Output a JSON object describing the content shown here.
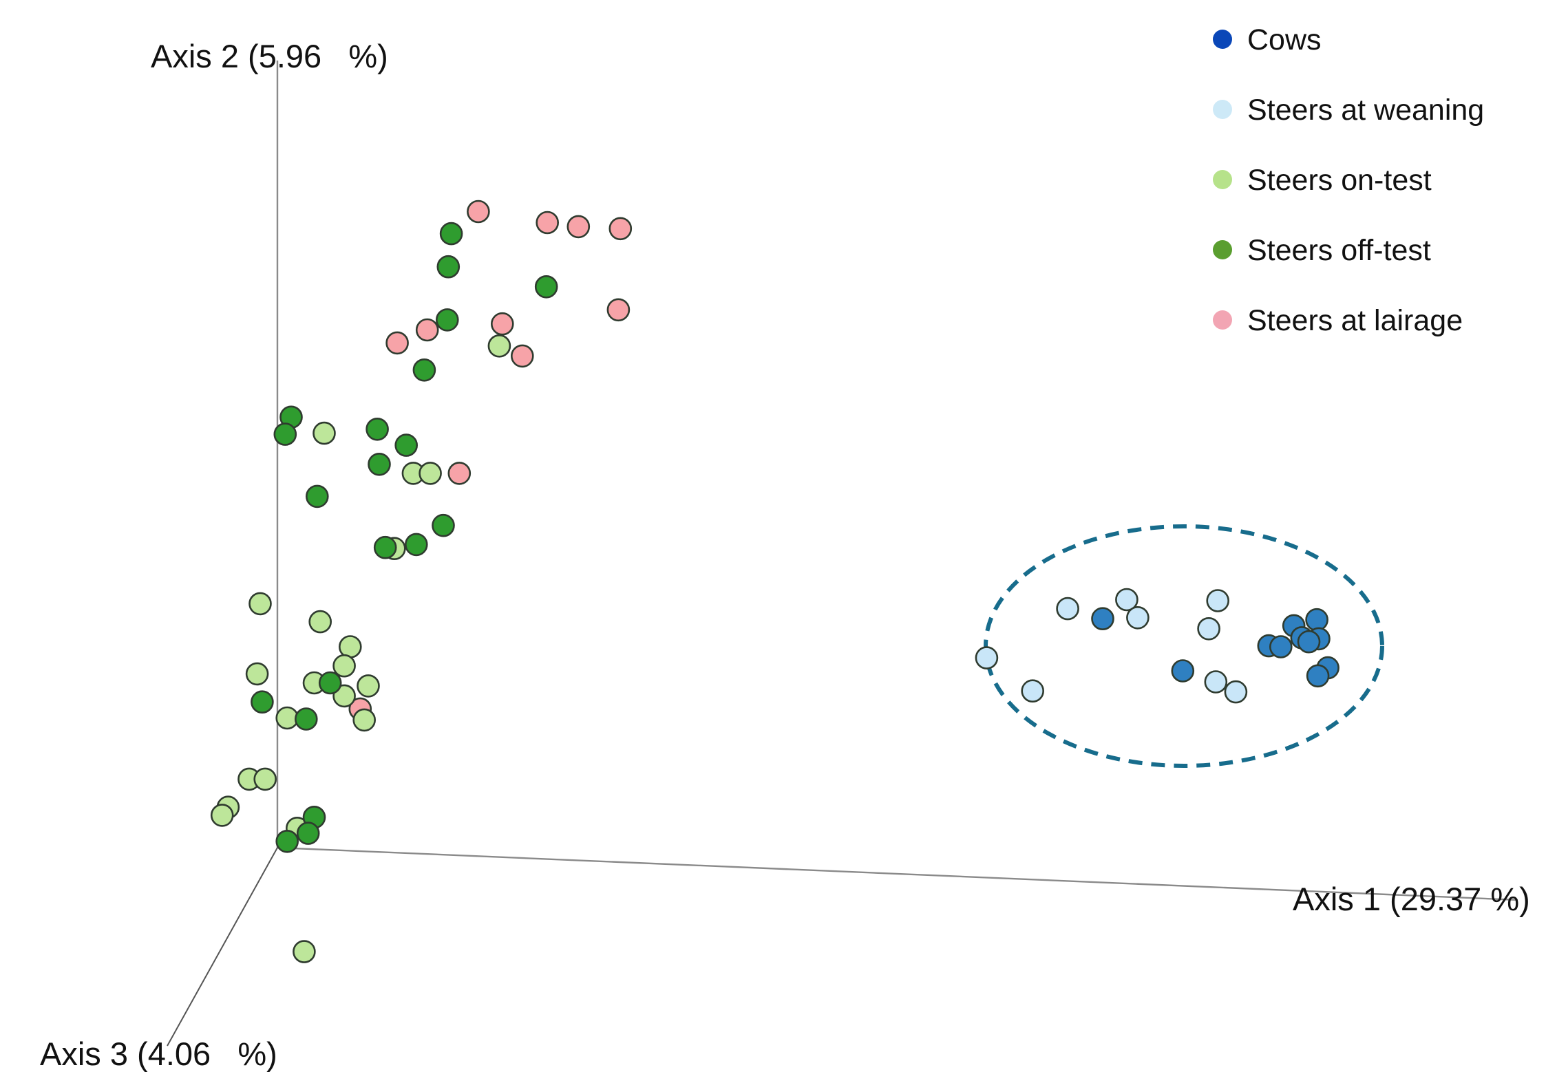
{
  "chart_data": {
    "type": "scatter",
    "projection": "3d",
    "axes": {
      "x": {
        "label": "Axis 1 (29.37 %)"
      },
      "y": {
        "label": "Axis 2 (5.96   %)"
      },
      "z": {
        "label": "Axis 3 (4.06   %)"
      }
    },
    "legend": {
      "placement": "top-right",
      "entries": [
        {
          "name": "Cows",
          "color": "#0a47b8"
        },
        {
          "name": "Steers at weaning",
          "color": "#cde9f7"
        },
        {
          "name": "Steers on-test",
          "color": "#b6e28a"
        },
        {
          "name": "Steers off-test",
          "color": "#5a9e2f"
        },
        {
          "name": "Steers at lairage",
          "color": "#f2a5b3"
        }
      ]
    },
    "annotation": {
      "type": "dashed-ellipse",
      "encloses": [
        "Cows",
        "Steers at weaning"
      ],
      "color": "#176c8c"
    },
    "series": [
      {
        "name": "Steers at lairage",
        "fill": "#f7a3a8",
        "points": [
          [
            478,
            211
          ],
          [
            547,
            222
          ],
          [
            578,
            226
          ],
          [
            620,
            228
          ],
          [
            618,
            309
          ],
          [
            502,
            323
          ],
          [
            522,
            355
          ],
          [
            427,
            329
          ],
          [
            397,
            342
          ],
          [
            459,
            472
          ],
          [
            360,
            707
          ]
        ]
      },
      {
        "name": "Steers on-test",
        "fill": "#bde69a",
        "points": [
          [
            499,
            345
          ],
          [
            324,
            432
          ],
          [
            413,
            472
          ],
          [
            430,
            472
          ],
          [
            394,
            547
          ],
          [
            260,
            602
          ],
          [
            320,
            620
          ],
          [
            350,
            645
          ],
          [
            344,
            664
          ],
          [
            257,
            672
          ],
          [
            314,
            681
          ],
          [
            368,
            684
          ],
          [
            344,
            694
          ],
          [
            287,
            716
          ],
          [
            364,
            718
          ],
          [
            249,
            777
          ],
          [
            265,
            777
          ],
          [
            228,
            805
          ],
          [
            222,
            813
          ],
          [
            297,
            826
          ],
          [
            304,
            949
          ]
        ]
      },
      {
        "name": "Steers off-test",
        "fill": "#2f9c2f",
        "points": [
          [
            451,
            233
          ],
          [
            448,
            266
          ],
          [
            546,
            286
          ],
          [
            447,
            319
          ],
          [
            424,
            369
          ],
          [
            291,
            416
          ],
          [
            285,
            433
          ],
          [
            377,
            428
          ],
          [
            406,
            444
          ],
          [
            379,
            463
          ],
          [
            317,
            495
          ],
          [
            443,
            524
          ],
          [
            385,
            546
          ],
          [
            416,
            543
          ],
          [
            330,
            681
          ],
          [
            262,
            700
          ],
          [
            306,
            717
          ],
          [
            314,
            815
          ],
          [
            308,
            831
          ],
          [
            287,
            839
          ]
        ]
      },
      {
        "name": "Steers at weaning",
        "fill": "#c9e6f8",
        "points": [
          [
            986,
            656
          ],
          [
            1067,
            607
          ],
          [
            1126,
            598
          ],
          [
            1137,
            616
          ],
          [
            1217,
            599
          ],
          [
            1208,
            627
          ],
          [
            1215,
            680
          ],
          [
            1235,
            690
          ],
          [
            1032,
            689
          ]
        ]
      },
      {
        "name": "Cows",
        "fill": "#2f80c1",
        "points": [
          [
            1102,
            617
          ],
          [
            1182,
            669
          ],
          [
            1293,
            624
          ],
          [
            1316,
            618
          ],
          [
            1268,
            644
          ],
          [
            1280,
            645
          ],
          [
            1301,
            636
          ],
          [
            1318,
            637
          ],
          [
            1308,
            640
          ],
          [
            1327,
            666
          ],
          [
            1317,
            674
          ]
        ]
      }
    ]
  }
}
